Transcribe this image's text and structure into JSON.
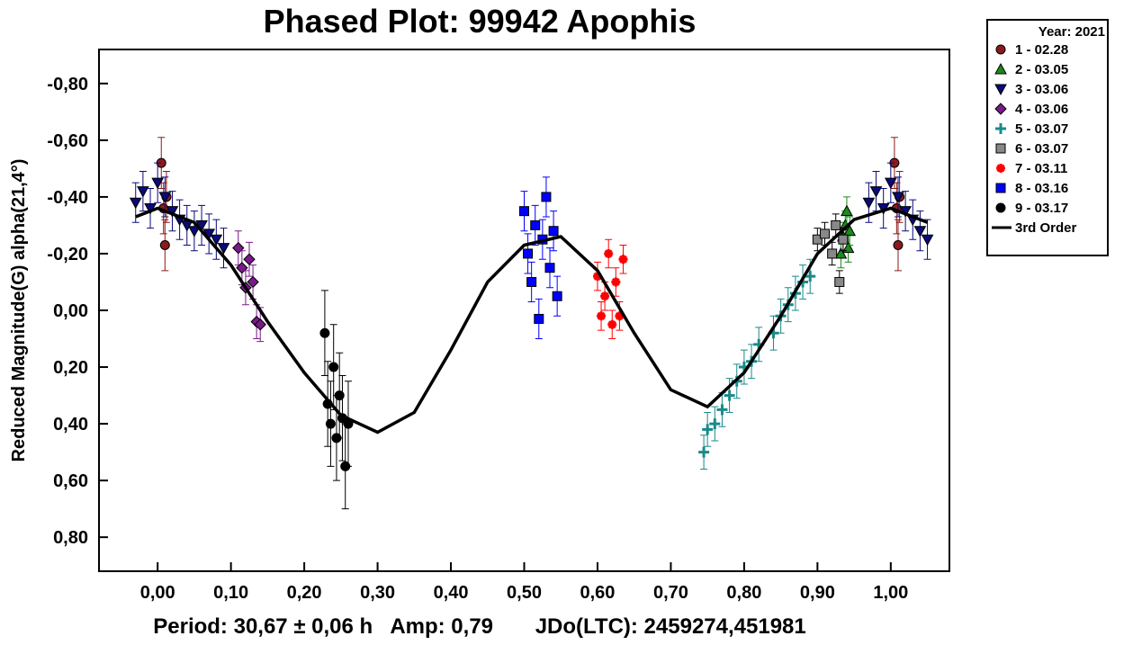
{
  "chart_data": {
    "type": "scatter",
    "title": "Phased Plot: 99942 Apophis",
    "xlabel": "",
    "ylabel": "Reduced Magnitude(G) alpha(21,4°)",
    "xlim": [
      -0.08,
      1.08
    ],
    "ylim": [
      0.92,
      -0.92
    ],
    "y_inverted": true,
    "x_ticks": [
      0,
      0.1,
      0.2,
      0.3,
      0.4,
      0.5,
      0.6,
      0.7,
      0.8,
      0.9,
      1.0
    ],
    "x_tick_labels": [
      "0,00",
      "0,10",
      "0,20",
      "0,30",
      "0,40",
      "0,50",
      "0,60",
      "0,70",
      "0,80",
      "0,90",
      "1,00"
    ],
    "y_ticks": [
      -0.8,
      -0.6,
      -0.4,
      -0.2,
      0.0,
      0.2,
      0.4,
      0.6,
      0.8
    ],
    "y_tick_labels": [
      "-0,80",
      "-0,60",
      "-0,40",
      "-0,20",
      "0,00",
      "0,20",
      "0,40",
      "0,60",
      "0,80"
    ],
    "grid": false,
    "legend_placement": "outside-top-right",
    "legend_title": "Year: 2021",
    "series": [
      {
        "name": "1 - 02.28",
        "marker": "circle",
        "color": "#8b1a1a",
        "x": [
          0.005,
          0.008,
          0.01,
          0.012,
          1.005,
          1.008,
          1.01,
          1.012
        ],
        "y": [
          -0.52,
          -0.36,
          -0.23,
          -0.4,
          -0.52,
          -0.36,
          -0.23,
          -0.4
        ],
        "err": 0.09
      },
      {
        "name": "2 - 03.05",
        "marker": "triangle-up",
        "color": "#1a8a1a",
        "x": [
          0.932,
          0.935,
          0.938,
          0.94,
          0.942,
          0.944
        ],
        "y": [
          -0.2,
          -0.26,
          -0.3,
          -0.35,
          -0.22,
          -0.28
        ],
        "err": 0.05
      },
      {
        "name": "3 - 03.06",
        "marker": "triangle-down",
        "color": "#0a0a7a",
        "x": [
          -0.03,
          -0.02,
          -0.01,
          0.0,
          0.01,
          0.02,
          0.03,
          0.04,
          0.05,
          0.06,
          0.07,
          0.08,
          0.09,
          0.97,
          0.98,
          0.99,
          1.0,
          1.01,
          1.02,
          1.03,
          1.04,
          1.05
        ],
        "y": [
          -0.38,
          -0.42,
          -0.36,
          -0.45,
          -0.4,
          -0.35,
          -0.32,
          -0.3,
          -0.28,
          -0.3,
          -0.27,
          -0.25,
          -0.22,
          -0.38,
          -0.42,
          -0.36,
          -0.45,
          -0.4,
          -0.35,
          -0.32,
          -0.28,
          -0.25
        ],
        "err": 0.07
      },
      {
        "name": "4 - 03.06",
        "marker": "diamond",
        "color": "#7a1a8a",
        "x": [
          0.11,
          0.115,
          0.12,
          0.125,
          0.13,
          0.135,
          0.14
        ],
        "y": [
          -0.22,
          -0.15,
          -0.08,
          -0.18,
          -0.1,
          0.04,
          0.05
        ],
        "err": 0.06
      },
      {
        "name": "5 - 03.07",
        "marker": "plus",
        "color": "#1a8a8a",
        "x": [
          0.745,
          0.75,
          0.76,
          0.77,
          0.78,
          0.79,
          0.8,
          0.81,
          0.82,
          0.84,
          0.85,
          0.86,
          0.87,
          0.88,
          0.89
        ],
        "y": [
          0.5,
          0.42,
          0.4,
          0.35,
          0.3,
          0.25,
          0.2,
          0.18,
          0.12,
          0.08,
          0.02,
          -0.02,
          -0.06,
          -0.1,
          -0.12
        ],
        "err": 0.06
      },
      {
        "name": "6 - 03.07",
        "marker": "square",
        "color": "#888888",
        "x": [
          0.9,
          0.91,
          0.92,
          0.925,
          0.93,
          0.935
        ],
        "y": [
          -0.25,
          -0.27,
          -0.2,
          -0.3,
          -0.1,
          -0.25
        ],
        "err": 0.04
      },
      {
        "name": "7 - 03.11",
        "marker": "asterisk",
        "color": "#ff0000",
        "x": [
          0.6,
          0.605,
          0.61,
          0.615,
          0.62,
          0.625,
          0.63,
          0.635
        ],
        "y": [
          -0.12,
          0.02,
          -0.05,
          -0.2,
          0.05,
          -0.1,
          0.02,
          -0.18
        ],
        "err": 0.05
      },
      {
        "name": "8 - 03.16",
        "marker": "square",
        "color": "#0000ff",
        "x": [
          0.5,
          0.505,
          0.51,
          0.515,
          0.52,
          0.525,
          0.53,
          0.535,
          0.54,
          0.545
        ],
        "y": [
          -0.35,
          -0.2,
          -0.1,
          -0.3,
          0.03,
          -0.25,
          -0.4,
          -0.15,
          -0.28,
          -0.05
        ],
        "err": 0.07
      },
      {
        "name": "9 - 03.17",
        "marker": "circle",
        "color": "#000000",
        "x": [
          0.228,
          0.232,
          0.236,
          0.24,
          0.244,
          0.248,
          0.252,
          0.256,
          0.26
        ],
        "y": [
          0.08,
          0.33,
          0.4,
          0.2,
          0.45,
          0.3,
          0.38,
          0.55,
          0.4
        ],
        "err": 0.15
      }
    ],
    "fit": {
      "name": "3rd Order",
      "color": "#000000",
      "x": [
        -0.03,
        0.0,
        0.05,
        0.1,
        0.15,
        0.2,
        0.25,
        0.3,
        0.35,
        0.4,
        0.45,
        0.5,
        0.55,
        0.6,
        0.65,
        0.7,
        0.75,
        0.8,
        0.85,
        0.9,
        0.95,
        1.0,
        1.05
      ],
      "y": [
        -0.33,
        -0.36,
        -0.31,
        -0.16,
        0.04,
        0.22,
        0.37,
        0.43,
        0.36,
        0.14,
        -0.1,
        -0.23,
        -0.26,
        -0.14,
        0.08,
        0.28,
        0.34,
        0.22,
        0.02,
        -0.2,
        -0.32,
        -0.36,
        -0.31
      ]
    },
    "footer": "Period: 30,67 ± 0,06 h   Amp: 0,79       JDo(LTC): 2459274,451981"
  }
}
